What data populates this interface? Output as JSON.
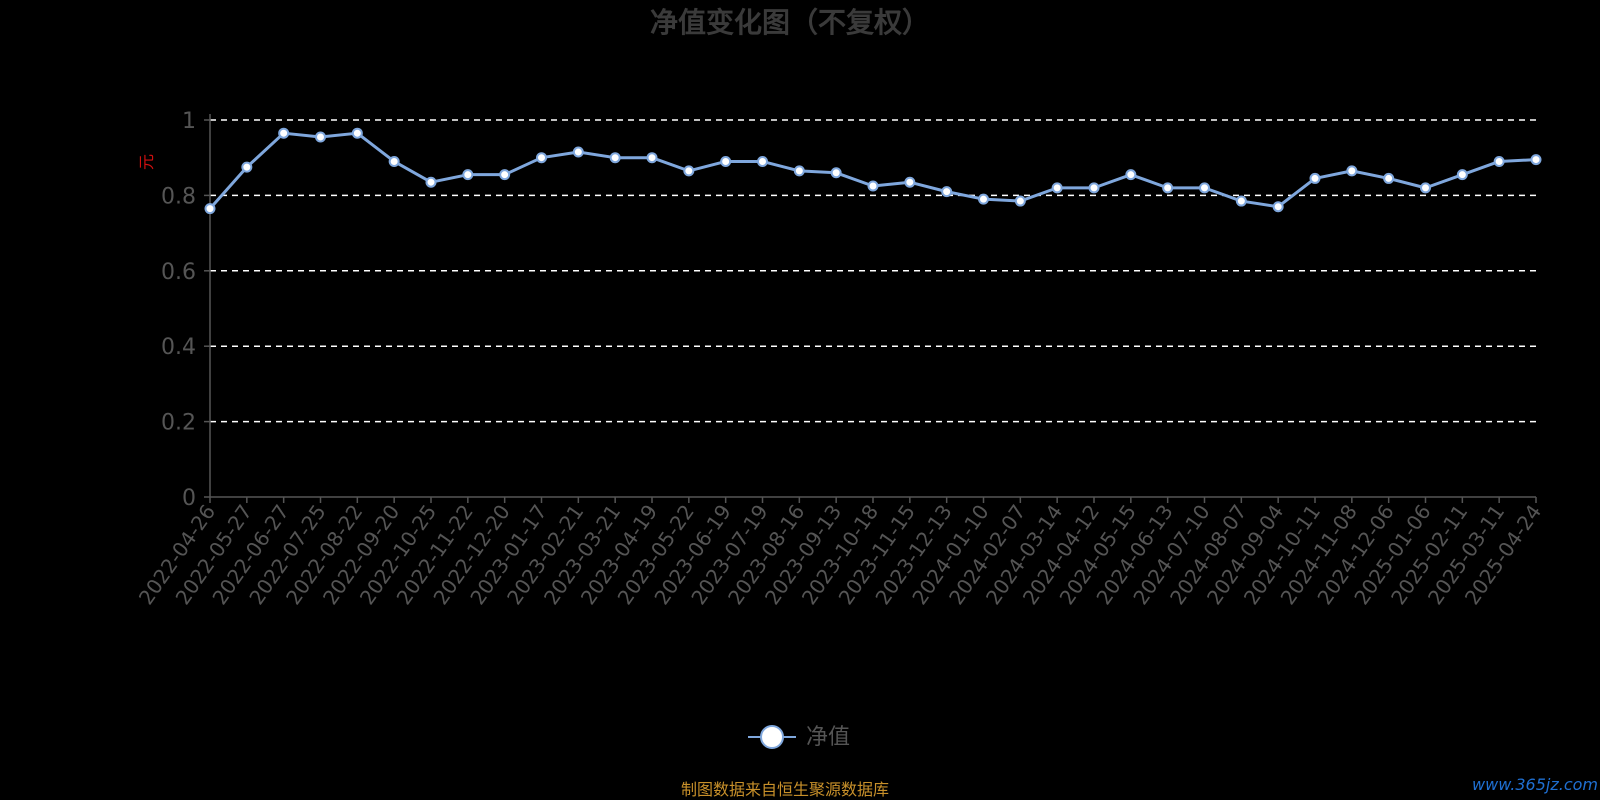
{
  "chart_data": {
    "type": "line",
    "title": "净值变化图（不复权）",
    "ylabel": "元",
    "ylim": [
      0,
      1
    ],
    "yticks": [
      "0",
      "0.2",
      "0.4",
      "0.6",
      "0.8",
      "1"
    ],
    "grid": true,
    "legend": "bottom-center",
    "colors": {
      "line": "#7fa7dd",
      "marker_fill": "#ffffff",
      "grid": "#ffffff",
      "axis": "#555555"
    },
    "x": [
      "2022-04-26",
      "2022-05-27",
      "2022-06-27",
      "2022-07-25",
      "2022-08-22",
      "2022-09-20",
      "2022-10-25",
      "2022-11-22",
      "2022-12-20",
      "2023-01-17",
      "2023-02-21",
      "2023-03-21",
      "2023-04-19",
      "2023-05-22",
      "2023-06-19",
      "2023-07-19",
      "2023-08-16",
      "2023-09-13",
      "2023-10-18",
      "2023-11-15",
      "2023-12-13",
      "2024-01-10",
      "2024-02-07",
      "2024-03-14",
      "2024-04-12",
      "2024-05-15",
      "2024-06-13",
      "2024-07-10",
      "2024-08-07",
      "2024-09-04",
      "2024-10-11",
      "2024-11-08",
      "2024-12-06",
      "2025-01-06",
      "2025-02-11",
      "2025-03-11",
      "2025-04-24"
    ],
    "series": [
      {
        "name": "净值",
        "values": [
          0.765,
          0.875,
          0.965,
          0.955,
          0.965,
          0.89,
          0.835,
          0.855,
          0.855,
          0.9,
          0.915,
          0.9,
          0.9,
          0.865,
          0.89,
          0.89,
          0.865,
          0.86,
          0.825,
          0.835,
          0.81,
          0.79,
          0.785,
          0.82,
          0.82,
          0.855,
          0.82,
          0.82,
          0.785,
          0.77,
          0.845,
          0.865,
          0.845,
          0.82,
          0.855,
          0.89,
          0.895
        ]
      }
    ]
  },
  "footer": {
    "source": "制图数据来自恒生聚源数据库",
    "watermark": "www.365jz.com"
  }
}
